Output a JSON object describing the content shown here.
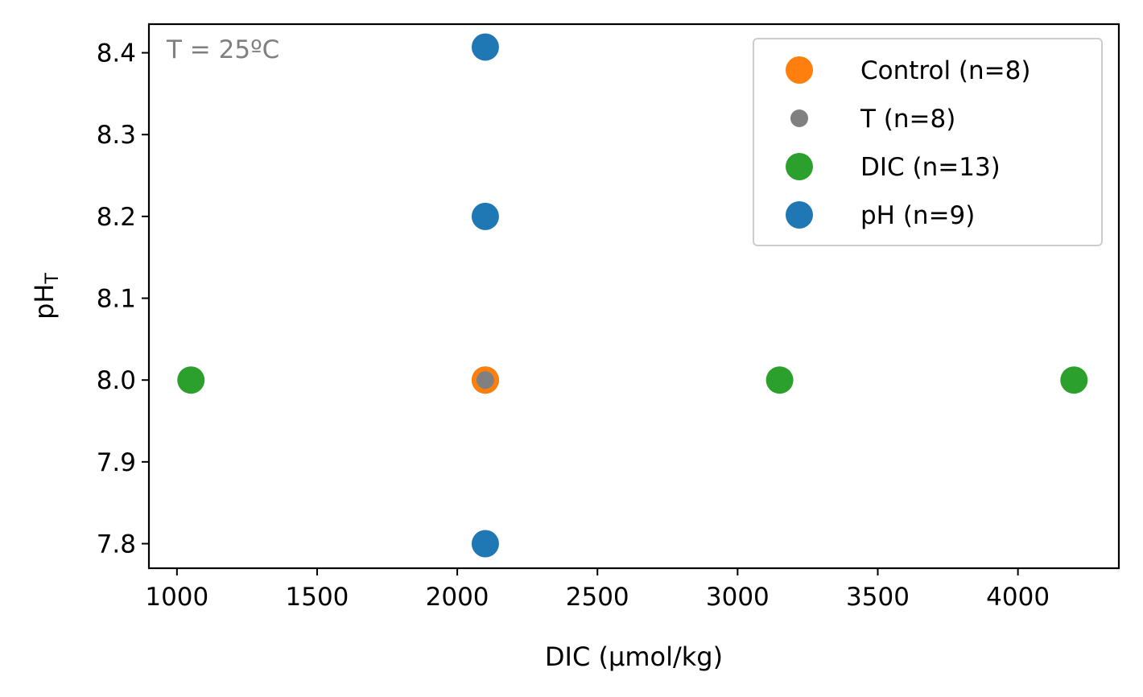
{
  "chart_data": {
    "type": "scatter",
    "xlabel": "DIC (µmol/kg)",
    "ylabel_main": "pH",
    "ylabel_sub": "T",
    "annotation": "T = 25ºC",
    "annotation_color": "#808080",
    "xlim": [
      900,
      4360
    ],
    "ylim": [
      7.77,
      8.435
    ],
    "xticks": [
      1000,
      1500,
      2000,
      2500,
      3000,
      3500,
      4000
    ],
    "yticks": [
      7.8,
      7.9,
      8.0,
      8.1,
      8.2,
      8.3,
      8.4
    ],
    "grid": false,
    "legend_position": "top-right",
    "series": [
      {
        "name": "Control (n=8)",
        "color": "#ff7f0e",
        "marker_size": "large",
        "points": [
          [
            2100,
            8.0
          ]
        ]
      },
      {
        "name": "T (n=8)",
        "color": "#808080",
        "marker_size": "small",
        "points": [
          [
            2100,
            8.0
          ]
        ]
      },
      {
        "name": "DIC (n=13)",
        "color": "#2ca02c",
        "marker_size": "large",
        "points": [
          [
            1050,
            8.0
          ],
          [
            2100,
            8.0
          ],
          [
            3150,
            8.0
          ],
          [
            4200,
            8.0
          ]
        ]
      },
      {
        "name": "pH (n=9)",
        "color": "#1f77b4",
        "marker_size": "large",
        "points": [
          [
            2100,
            7.8
          ],
          [
            2100,
            8.2
          ],
          [
            2100,
            8.407
          ]
        ]
      }
    ],
    "draw_order": [
      2,
      3,
      0,
      1
    ]
  }
}
